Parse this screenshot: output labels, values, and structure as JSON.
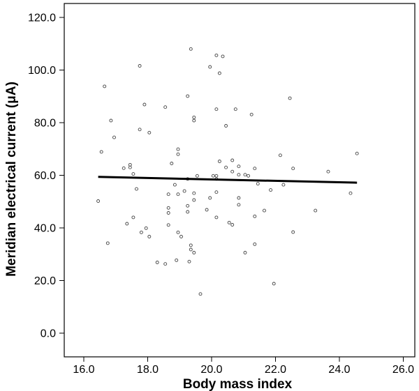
{
  "chart_data": {
    "type": "scatter",
    "title": "",
    "xlabel": "Body mass index",
    "ylabel": "Meridian electrical current (μA)",
    "xlim": [
      15.0,
      26.8
    ],
    "ylim": [
      -4.0,
      124.0
    ],
    "x_ticks": [
      16.0,
      18.0,
      20.0,
      22.0,
      24.0,
      26.0
    ],
    "x_tick_labels": [
      "16.0",
      "18.0",
      "20.0",
      "22.0",
      "24.0",
      "26.0"
    ],
    "y_ticks": [
      0.0,
      20.0,
      40.0,
      60.0,
      80.0,
      100.0,
      120.0
    ],
    "y_tick_labels": [
      "0.0",
      "20.0",
      "40.0",
      "60.0",
      "80.0",
      "100.0",
      "120.0"
    ],
    "grid": false,
    "legend": "none",
    "points": [
      {
        "x": 16.45,
        "y": 50.2
      },
      {
        "x": 16.55,
        "y": 68.9
      },
      {
        "x": 16.65,
        "y": 93.8
      },
      {
        "x": 16.75,
        "y": 34.2
      },
      {
        "x": 16.85,
        "y": 80.8
      },
      {
        "x": 16.95,
        "y": 74.4
      },
      {
        "x": 17.25,
        "y": 62.7
      },
      {
        "x": 17.35,
        "y": 41.6
      },
      {
        "x": 17.45,
        "y": 64.0
      },
      {
        "x": 17.45,
        "y": 63.0
      },
      {
        "x": 17.55,
        "y": 60.5
      },
      {
        "x": 17.55,
        "y": 44.0
      },
      {
        "x": 17.65,
        "y": 54.8
      },
      {
        "x": 17.75,
        "y": 101.6
      },
      {
        "x": 17.75,
        "y": 77.4
      },
      {
        "x": 17.8,
        "y": 38.3
      },
      {
        "x": 17.9,
        "y": 86.9
      },
      {
        "x": 17.95,
        "y": 39.9
      },
      {
        "x": 18.05,
        "y": 76.2
      },
      {
        "x": 18.05,
        "y": 36.7
      },
      {
        "x": 18.3,
        "y": 26.9
      },
      {
        "x": 18.55,
        "y": 85.9
      },
      {
        "x": 18.55,
        "y": 26.3
      },
      {
        "x": 18.65,
        "y": 52.8
      },
      {
        "x": 18.65,
        "y": 47.6
      },
      {
        "x": 18.65,
        "y": 45.7
      },
      {
        "x": 18.65,
        "y": 41.1
      },
      {
        "x": 18.75,
        "y": 64.5
      },
      {
        "x": 18.85,
        "y": 56.4
      },
      {
        "x": 18.9,
        "y": 27.7
      },
      {
        "x": 18.95,
        "y": 69.9
      },
      {
        "x": 18.95,
        "y": 68.0
      },
      {
        "x": 18.95,
        "y": 52.8
      },
      {
        "x": 18.95,
        "y": 38.3
      },
      {
        "x": 19.05,
        "y": 36.7
      },
      {
        "x": 19.15,
        "y": 54.0
      },
      {
        "x": 19.25,
        "y": 90.1
      },
      {
        "x": 19.25,
        "y": 58.6
      },
      {
        "x": 19.25,
        "y": 48.4
      },
      {
        "x": 19.25,
        "y": 46.1
      },
      {
        "x": 19.3,
        "y": 27.2
      },
      {
        "x": 19.35,
        "y": 108.0
      },
      {
        "x": 19.35,
        "y": 33.4
      },
      {
        "x": 19.35,
        "y": 31.8
      },
      {
        "x": 19.45,
        "y": 82.0
      },
      {
        "x": 19.45,
        "y": 80.8
      },
      {
        "x": 19.45,
        "y": 53.2
      },
      {
        "x": 19.45,
        "y": 50.6
      },
      {
        "x": 19.45,
        "y": 30.6
      },
      {
        "x": 19.55,
        "y": 59.8
      },
      {
        "x": 19.65,
        "y": 14.9
      },
      {
        "x": 19.85,
        "y": 46.9
      },
      {
        "x": 19.95,
        "y": 101.2
      },
      {
        "x": 19.95,
        "y": 51.4
      },
      {
        "x": 20.05,
        "y": 59.8
      },
      {
        "x": 20.15,
        "y": 105.6
      },
      {
        "x": 20.15,
        "y": 85.1
      },
      {
        "x": 20.15,
        "y": 59.8
      },
      {
        "x": 20.15,
        "y": 58.6
      },
      {
        "x": 20.15,
        "y": 53.6
      },
      {
        "x": 20.15,
        "y": 44.0
      },
      {
        "x": 20.25,
        "y": 98.8
      },
      {
        "x": 20.25,
        "y": 65.3
      },
      {
        "x": 20.35,
        "y": 105.2
      },
      {
        "x": 20.45,
        "y": 78.8
      },
      {
        "x": 20.45,
        "y": 63.0
      },
      {
        "x": 20.55,
        "y": 42.0
      },
      {
        "x": 20.65,
        "y": 65.7
      },
      {
        "x": 20.65,
        "y": 61.4
      },
      {
        "x": 20.65,
        "y": 41.2
      },
      {
        "x": 20.75,
        "y": 85.1
      },
      {
        "x": 20.85,
        "y": 63.4
      },
      {
        "x": 20.85,
        "y": 60.2
      },
      {
        "x": 20.85,
        "y": 51.4
      },
      {
        "x": 20.85,
        "y": 48.8
      },
      {
        "x": 21.05,
        "y": 60.2
      },
      {
        "x": 21.05,
        "y": 30.6
      },
      {
        "x": 21.15,
        "y": 59.8
      },
      {
        "x": 21.25,
        "y": 83.1
      },
      {
        "x": 21.35,
        "y": 62.6
      },
      {
        "x": 21.35,
        "y": 44.4
      },
      {
        "x": 21.35,
        "y": 33.8
      },
      {
        "x": 21.45,
        "y": 56.8
      },
      {
        "x": 21.65,
        "y": 46.6
      },
      {
        "x": 21.85,
        "y": 54.4
      },
      {
        "x": 21.95,
        "y": 18.8
      },
      {
        "x": 22.15,
        "y": 67.6
      },
      {
        "x": 22.25,
        "y": 56.4
      },
      {
        "x": 22.45,
        "y": 89.3
      },
      {
        "x": 22.55,
        "y": 62.6
      },
      {
        "x": 22.55,
        "y": 38.4
      },
      {
        "x": 23.25,
        "y": 46.6
      },
      {
        "x": 23.65,
        "y": 61.4
      },
      {
        "x": 24.35,
        "y": 53.2
      },
      {
        "x": 24.55,
        "y": 68.3
      }
    ],
    "fit_line": {
      "x": [
        16.45,
        24.55
      ],
      "y": [
        59.4,
        57.2
      ]
    }
  }
}
